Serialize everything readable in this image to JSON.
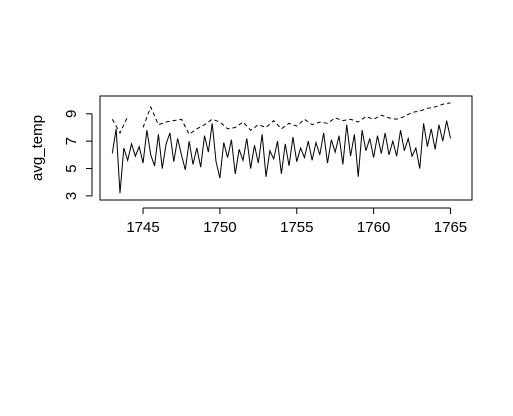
{
  "chart_data": {
    "type": "line",
    "ylabel": "avg_temp",
    "xlim": [
      1742.2,
      1766.4
    ],
    "ylim": [
      2.7,
      10.3
    ],
    "xticks": [
      1745,
      1750,
      1755,
      1760,
      1765
    ],
    "yticks": [
      3,
      5,
      7,
      9
    ],
    "grid": false,
    "series": [
      {
        "color": "#000000",
        "line_style": "solid",
        "x": [
          1743,
          1743.25,
          1743.5,
          1743.75,
          1744,
          1744.25,
          1744.5,
          1744.75,
          1745,
          1745.25,
          1745.5,
          1745.75,
          1746,
          1746.25,
          1746.5,
          1746.75,
          1747,
          1747.25,
          1747.5,
          1747.75,
          1748,
          1748.25,
          1748.5,
          1748.75,
          1749,
          1749.25,
          1749.5,
          1749.75,
          1750,
          1750.25,
          1750.5,
          1750.75,
          1751,
          1751.25,
          1751.5,
          1751.75,
          1752,
          1752.25,
          1752.5,
          1752.75,
          1753,
          1753.25,
          1753.5,
          1753.75,
          1754,
          1754.25,
          1754.5,
          1754.75,
          1755,
          1755.25,
          1755.5,
          1755.75,
          1756,
          1756.25,
          1756.5,
          1756.75,
          1757,
          1757.25,
          1757.5,
          1757.75,
          1758,
          1758.25,
          1758.5,
          1758.75,
          1759,
          1759.25,
          1759.5,
          1759.75,
          1760,
          1760.25,
          1760.5,
          1760.75,
          1761,
          1761.25,
          1761.5,
          1761.75,
          1762,
          1762.25,
          1762.5,
          1762.75,
          1763,
          1763.25,
          1763.5,
          1763.75,
          1764,
          1764.25,
          1764.5,
          1764.75,
          1765
        ],
        "values": [
          6.1,
          7.9,
          3.2,
          6.5,
          5.6,
          6.8,
          5.9,
          6.6,
          5.4,
          7.8,
          6.0,
          5.2,
          7.5,
          5.0,
          6.8,
          7.6,
          5.5,
          7.2,
          6.0,
          4.9,
          7.0,
          5.3,
          6.5,
          5.1,
          7.4,
          6.2,
          8.3,
          5.5,
          4.3,
          6.9,
          5.8,
          7.1,
          4.6,
          6.4,
          5.6,
          7.2,
          5.0,
          6.7,
          5.4,
          7.5,
          4.4,
          6.3,
          5.7,
          7.0,
          4.6,
          6.8,
          5.2,
          7.3,
          5.5,
          6.5,
          5.8,
          7.0,
          5.6,
          6.9,
          6.0,
          7.6,
          5.4,
          7.1,
          6.2,
          7.4,
          5.3,
          8.2,
          5.9,
          7.5,
          4.4,
          7.8,
          6.3,
          7.2,
          5.8,
          7.4,
          6.1,
          7.6,
          6.0,
          7.0,
          5.9,
          7.8,
          6.3,
          7.2,
          5.9,
          6.5,
          5.0,
          8.3,
          6.6,
          7.9,
          6.4,
          8.2,
          7.0,
          8.5,
          7.2
        ]
      },
      {
        "color": "#000000",
        "line_style": "dashed",
        "x": [
          1743,
          1743.5,
          1744,
          1744.5,
          1745,
          1745.5,
          1746,
          1746.5,
          1747,
          1747.5,
          1748,
          1748.5,
          1749,
          1749.5,
          1750,
          1750.5,
          1751,
          1751.5,
          1752,
          1752.5,
          1753,
          1753.5,
          1754,
          1754.5,
          1755,
          1755.5,
          1756,
          1756.5,
          1757,
          1757.5,
          1758,
          1758.5,
          1759,
          1759.5,
          1760,
          1760.5,
          1761,
          1761.5,
          1762,
          1762.5,
          1763,
          1763.5,
          1764,
          1764.5,
          1765
        ],
        "values": [
          8.6,
          7.6,
          8.8,
          null,
          8.0,
          9.5,
          8.2,
          8.4,
          8.5,
          8.6,
          7.5,
          7.9,
          8.2,
          8.6,
          8.4,
          7.9,
          8.0,
          8.4,
          7.8,
          8.2,
          8.0,
          8.5,
          7.9,
          8.3,
          8.1,
          8.6,
          8.2,
          8.4,
          8.3,
          8.7,
          8.5,
          8.6,
          8.4,
          8.8,
          8.6,
          8.9,
          8.7,
          8.6,
          8.8,
          9.1,
          9.2,
          9.4,
          9.5,
          9.7,
          9.8
        ]
      }
    ]
  }
}
